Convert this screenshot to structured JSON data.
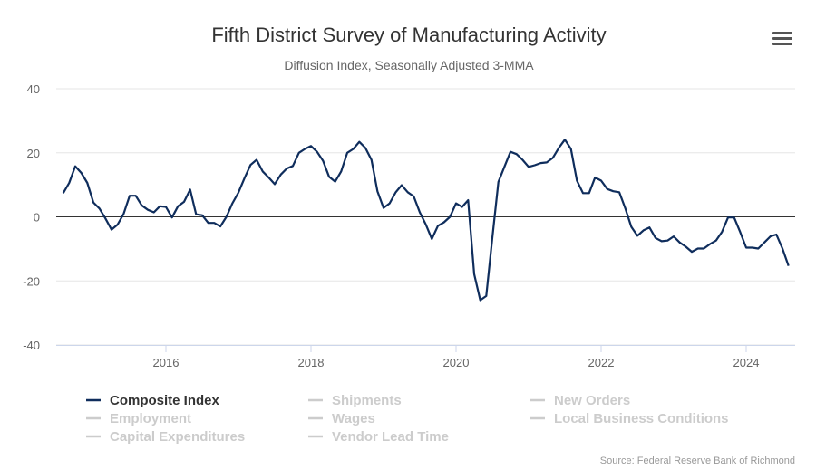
{
  "chart_data": {
    "type": "line",
    "title": "Fifth District Survey of Manufacturing Activity",
    "subtitle": "Diffusion Index, Seasonally Adjusted 3-MMA",
    "xlabel": "",
    "ylabel": "",
    "ylim": [
      -40,
      40
    ],
    "yticks": [
      "40",
      "20",
      "0",
      "-20",
      "-40"
    ],
    "yticks_values": [
      40,
      20,
      0,
      -20,
      -40
    ],
    "xticks": [
      "2016",
      "2018",
      "2020",
      "2022",
      "2024"
    ],
    "grid": true,
    "legend_position": "bottom",
    "x": [
      "2014-08",
      "2014-09",
      "2014-10",
      "2014-11",
      "2014-12",
      "2015-01",
      "2015-02",
      "2015-03",
      "2015-04",
      "2015-05",
      "2015-06",
      "2015-07",
      "2015-08",
      "2015-09",
      "2015-10",
      "2015-11",
      "2015-12",
      "2016-01",
      "2016-02",
      "2016-03",
      "2016-04",
      "2016-05",
      "2016-06",
      "2016-07",
      "2016-08",
      "2016-09",
      "2016-10",
      "2016-11",
      "2016-12",
      "2017-01",
      "2017-02",
      "2017-03",
      "2017-04",
      "2017-05",
      "2017-06",
      "2017-07",
      "2017-08",
      "2017-09",
      "2017-10",
      "2017-11",
      "2017-12",
      "2018-01",
      "2018-02",
      "2018-03",
      "2018-04",
      "2018-05",
      "2018-06",
      "2018-07",
      "2018-08",
      "2018-09",
      "2018-10",
      "2018-11",
      "2018-12",
      "2019-01",
      "2019-02",
      "2019-03",
      "2019-04",
      "2019-05",
      "2019-06",
      "2019-07",
      "2019-08",
      "2019-09",
      "2019-10",
      "2019-11",
      "2019-12",
      "2020-01",
      "2020-02",
      "2020-03",
      "2020-04",
      "2020-05",
      "2020-06",
      "2020-07",
      "2020-08",
      "2020-09",
      "2020-10",
      "2020-11",
      "2020-12",
      "2021-01",
      "2021-02",
      "2021-03",
      "2021-04",
      "2021-05",
      "2021-06",
      "2021-07",
      "2021-08",
      "2021-09",
      "2021-10",
      "2021-11",
      "2021-12",
      "2022-01",
      "2022-02",
      "2022-03",
      "2022-04",
      "2022-05",
      "2022-06",
      "2022-07",
      "2022-08",
      "2022-09",
      "2022-10",
      "2022-11",
      "2022-12",
      "2023-01",
      "2023-02",
      "2023-03",
      "2023-04",
      "2023-05",
      "2023-06",
      "2023-07",
      "2023-08",
      "2023-09",
      "2023-10",
      "2023-11",
      "2023-12",
      "2024-01",
      "2024-02",
      "2024-03",
      "2024-04",
      "2024-05",
      "2024-06",
      "2024-07",
      "2024-08"
    ],
    "series": [
      {
        "name": "Composite Index",
        "visible": true,
        "color": "#0f2d5c",
        "values": [
          7.4,
          10.6,
          15.8,
          13.7,
          10.6,
          4.5,
          2.6,
          -0.5,
          -4,
          -2.4,
          0.9,
          6.6,
          6.6,
          3.6,
          2.2,
          1.4,
          3.3,
          3.1,
          -0.2,
          3.3,
          4.7,
          8.5,
          0.8,
          0.5,
          -1.9,
          -1.9,
          -3,
          0,
          4.2,
          7.6,
          12.1,
          16.2,
          17.8,
          14.2,
          12.3,
          10.2,
          13.2,
          15.1,
          15.9,
          20,
          21.2,
          22.1,
          20.3,
          17.5,
          12.5,
          11,
          14.2,
          20,
          21.2,
          23.4,
          21.5,
          17.8,
          8,
          2.8,
          4.2,
          7.6,
          9.9,
          7.7,
          6.4,
          1.4,
          -2.4,
          -6.9,
          -2.8,
          -1.7,
          0,
          4.2,
          3.1,
          5.2,
          -17.9,
          -26,
          -24.7,
          -6.6,
          10.9,
          15.6,
          20.3,
          19.6,
          17.8,
          15.6,
          16.1,
          16.8,
          17,
          18.4,
          21.5,
          24.1,
          21.2,
          11.3,
          7.4,
          7.4,
          12.3,
          11.3,
          8.7,
          8,
          7.7,
          2.6,
          -3.1,
          -5.9,
          -4.2,
          -3.3,
          -6.6,
          -7.6,
          -7.4,
          -6.1,
          -8,
          -9.3,
          -10.9,
          -9.9,
          -9.9,
          -8.5,
          -7.4,
          -4.7,
          -0.2,
          -0.2,
          -4.7,
          -9.6,
          -9.6,
          -9.9,
          -8,
          -6.1,
          -5.5,
          -9.9,
          -15.3
        ]
      },
      {
        "name": "Shipments",
        "visible": false
      },
      {
        "name": "New Orders",
        "visible": false
      },
      {
        "name": "Employment",
        "visible": false
      },
      {
        "name": "Wages",
        "visible": false
      },
      {
        "name": "Local Business Conditions",
        "visible": false
      },
      {
        "name": "Capital Expenditures",
        "visible": false
      },
      {
        "name": "Vendor Lead Time",
        "visible": false
      }
    ],
    "source": "Source: Federal Reserve Bank of Richmond"
  },
  "colors": {
    "active": "#0f2d5c",
    "inactive": "#cccccc",
    "active_text": "#333333"
  },
  "menu_icon": "hamburger-menu-icon"
}
